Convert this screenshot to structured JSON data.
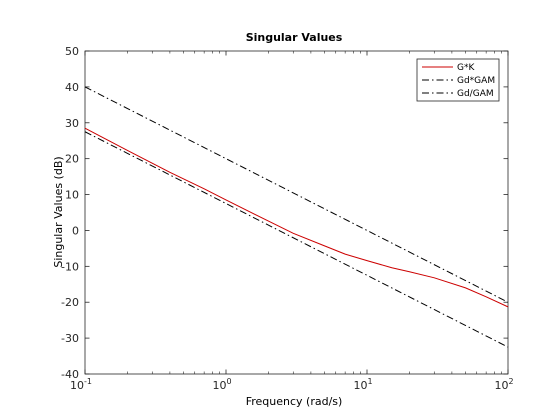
{
  "chart_data": {
    "type": "line",
    "title": "Singular Values",
    "xlabel": "Frequency (rad/s)",
    "ylabel": "Singular Values (dB)",
    "xscale": "log",
    "xlim": [
      0.1,
      100
    ],
    "ylim": [
      -40,
      50
    ],
    "xticks": [
      {
        "value": 0.1,
        "base": "10",
        "exp": "-1"
      },
      {
        "value": 1,
        "base": "10",
        "exp": "0"
      },
      {
        "value": 10,
        "base": "10",
        "exp": "1"
      },
      {
        "value": 100,
        "base": "10",
        "exp": "2"
      }
    ],
    "yticks": [
      -40,
      -30,
      -20,
      -10,
      0,
      10,
      20,
      30,
      40,
      50
    ],
    "grid": false,
    "legend_position": "top-right",
    "series": [
      {
        "name": "G*K",
        "color": "#cc0000",
        "style": "solid",
        "x": [
          0.1,
          0.2,
          0.4,
          0.7,
          1,
          2,
          3,
          5,
          7,
          10,
          15,
          20,
          30,
          50,
          70,
          100
        ],
        "y": [
          28.5,
          22.3,
          16.2,
          11.6,
          8.5,
          2.6,
          -0.8,
          -4.3,
          -6.6,
          -8.4,
          -10.4,
          -11.5,
          -13.2,
          -16,
          -18.5,
          -21.3
        ]
      },
      {
        "name": "Gd*GAM",
        "color": "#000000",
        "style": "dashdot",
        "x": [
          0.1,
          100
        ],
        "y": [
          40,
          -20
        ]
      },
      {
        "name": "Gd/GAM",
        "color": "#000000",
        "style": "dashdot",
        "x": [
          0.1,
          100
        ],
        "y": [
          27.5,
          -32.5
        ]
      }
    ]
  }
}
